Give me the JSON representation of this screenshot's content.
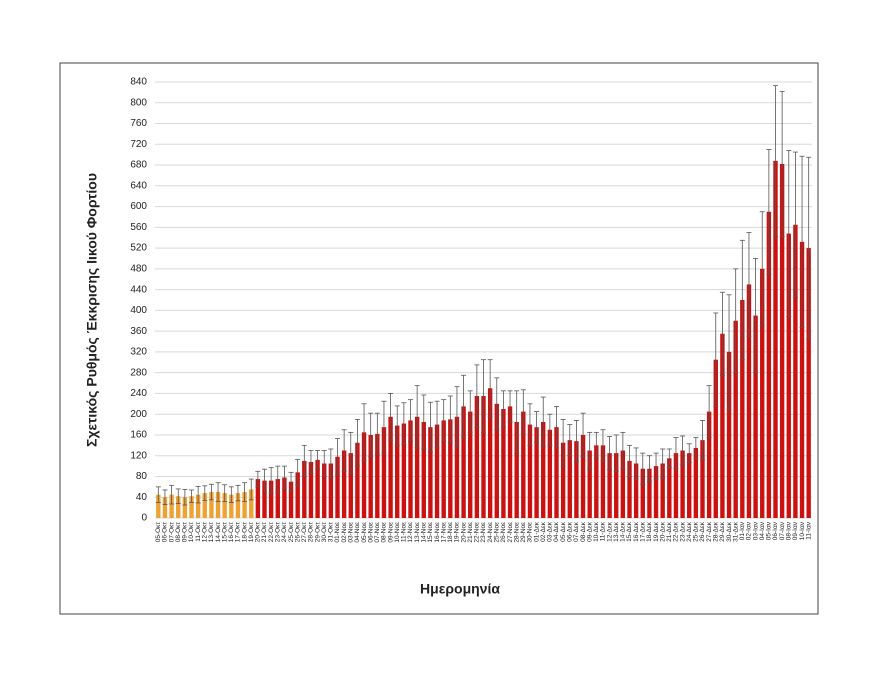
{
  "chart_data": {
    "type": "bar",
    "x_label": "Ημερομηνία",
    "y_label": "Σχετικός Ρυθμός Έκκρισης Ιικού Φορτίου",
    "categories": [
      "05-Οκτ",
      "06-Οκτ",
      "07-Οκτ",
      "08-Οκτ",
      "09-Οκτ",
      "10-Οκτ",
      "11-Οκτ",
      "12-Οκτ",
      "13-Οκτ",
      "14-Οκτ",
      "15-Οκτ",
      "16-Οκτ",
      "17-Οκτ",
      "18-Οκτ",
      "19-Οκτ",
      "20-Οκτ",
      "21-Οκτ",
      "22-Οκτ",
      "23-Οκτ",
      "24-Οκτ",
      "25-Οκτ",
      "26-Οκτ",
      "27-Οκτ",
      "28-Οκτ",
      "29-Οκτ",
      "30-Οκτ",
      "31-Οκτ",
      "01-Νοε",
      "02-Νοε",
      "03-Νοε",
      "04-Νοε",
      "05-Νοε",
      "06-Νοε",
      "07-Νοε",
      "08-Νοε",
      "09-Νοε",
      "10-Νοε",
      "11-Νοε",
      "12-Νοε",
      "13-Νοε",
      "14-Νοε",
      "15-Νοε",
      "16-Νοε",
      "17-Νοε",
      "18-Νοε",
      "19-Νοε",
      "20-Νοε",
      "21-Νοε",
      "22-Νοε",
      "23-Νοε",
      "24-Νοε",
      "25-Νοε",
      "26-Νοε",
      "27-Νοε",
      "28-Νοε",
      "29-Νοε",
      "30-Νοε",
      "01-Δεκ",
      "02-Δεκ",
      "03-Δεκ",
      "04-Δεκ",
      "05-Δεκ",
      "06-Δεκ",
      "07-Δεκ",
      "08-Δεκ",
      "09-Δεκ",
      "10-Δεκ",
      "11-Δεκ",
      "12-Δεκ",
      "13-Δεκ",
      "14-Δεκ",
      "15-Δεκ",
      "16-Δεκ",
      "17-Δεκ",
      "18-Δεκ",
      "19-Δεκ",
      "20-Δεκ",
      "21-Δεκ",
      "22-Δεκ",
      "23-Δεκ",
      "24-Δεκ",
      "25-Δεκ",
      "26-Δεκ",
      "27-Δεκ",
      "28-Δεκ",
      "29-Δεκ",
      "30-Δεκ",
      "31-Δεκ",
      "01-Ιαν",
      "02-Ιαν",
      "03-Ιαν",
      "04-Ιαν",
      "05-Ιαν",
      "06-Ιαν",
      "07-Ιαν",
      "08-Ιαν",
      "09-Ιαν",
      "10-Ιαν",
      "11-Ιαν"
    ],
    "series": [
      {
        "color": "#eea235",
        "values": [
          45,
          40,
          45,
          42,
          40,
          42,
          45,
          48,
          50,
          50,
          48,
          45,
          48,
          50,
          55,
          null,
          null,
          null,
          null,
          null,
          null,
          null,
          null,
          null,
          null,
          null,
          null,
          null,
          null,
          null,
          null,
          null,
          null,
          null,
          null,
          null,
          null,
          null,
          null,
          null,
          null,
          null,
          null,
          null,
          null,
          null,
          null,
          null,
          null,
          null,
          null,
          null,
          null,
          null,
          null,
          null,
          null,
          null,
          null,
          null,
          null,
          null,
          null,
          null,
          null,
          null,
          null,
          null,
          null,
          null,
          null,
          null,
          null,
          null,
          null,
          null,
          null,
          null,
          null,
          null,
          null,
          null,
          null,
          null,
          null,
          null,
          null,
          null,
          null,
          null,
          null,
          null,
          null,
          null,
          null,
          null,
          null,
          null,
          null
        ],
        "errors": [
          15,
          14,
          18,
          14,
          15,
          12,
          16,
          14,
          15,
          18,
          16,
          15,
          15,
          18,
          20,
          null,
          null,
          null,
          null,
          null,
          null,
          null,
          null,
          null,
          null,
          null,
          null,
          null,
          null,
          null,
          null,
          null,
          null,
          null,
          null,
          null,
          null,
          null,
          null,
          null,
          null,
          null,
          null,
          null,
          null,
          null,
          null,
          null,
          null,
          null,
          null,
          null,
          null,
          null,
          null,
          null,
          null,
          null,
          null,
          null,
          null,
          null,
          null,
          null,
          null,
          null,
          null,
          null,
          null,
          null,
          null,
          null,
          null,
          null,
          null,
          null,
          null,
          null,
          null,
          null,
          null,
          null,
          null,
          null,
          null,
          null,
          null,
          null,
          null,
          null,
          null,
          null,
          null,
          null,
          null,
          null,
          null,
          null,
          null
        ]
      },
      {
        "color": "#cc1111",
        "values": [
          null,
          null,
          null,
          null,
          null,
          null,
          null,
          null,
          null,
          null,
          null,
          null,
          null,
          null,
          null,
          75,
          72,
          72,
          75,
          78,
          70,
          88,
          110,
          108,
          112,
          105,
          105,
          118,
          130,
          125,
          145,
          165,
          160,
          162,
          175,
          195,
          178,
          182,
          188,
          195,
          185,
          175,
          180,
          188,
          190,
          195,
          215,
          205,
          235,
          235,
          250,
          220,
          210,
          215,
          185,
          205,
          180,
          175,
          185,
          170,
          175,
          145,
          150,
          148,
          160,
          130,
          140,
          140,
          125,
          125,
          130,
          110,
          105,
          95,
          95,
          100,
          105,
          115,
          125,
          130,
          125,
          135,
          150,
          205,
          305,
          355,
          320,
          380,
          420,
          450,
          390,
          480,
          590,
          688,
          682,
          548,
          565,
          532,
          520
        ],
        "errors": [
          null,
          null,
          null,
          null,
          null,
          null,
          null,
          null,
          null,
          null,
          null,
          null,
          null,
          null,
          null,
          15,
          22,
          25,
          25,
          22,
          18,
          25,
          30,
          22,
          18,
          25,
          28,
          35,
          40,
          40,
          45,
          55,
          42,
          40,
          50,
          45,
          38,
          40,
          40,
          60,
          52,
          48,
          45,
          40,
          45,
          58,
          60,
          40,
          60,
          70,
          55,
          50,
          35,
          30,
          60,
          42,
          40,
          30,
          48,
          30,
          40,
          45,
          30,
          40,
          42,
          35,
          25,
          30,
          32,
          35,
          35,
          30,
          30,
          30,
          25,
          25,
          28,
          18,
          30,
          28,
          18,
          20,
          38,
          50,
          90,
          80,
          110,
          100,
          115,
          100,
          110,
          110,
          120,
          145,
          140,
          160,
          140,
          165,
          175
        ]
      }
    ],
    "ylim": [
      0,
      840
    ],
    "yticks": [
      0,
      40,
      80,
      120,
      160,
      200,
      240,
      280,
      320,
      360,
      400,
      440,
      480,
      520,
      560,
      600,
      640,
      680,
      720,
      760,
      800,
      840
    ],
    "grid": true
  }
}
